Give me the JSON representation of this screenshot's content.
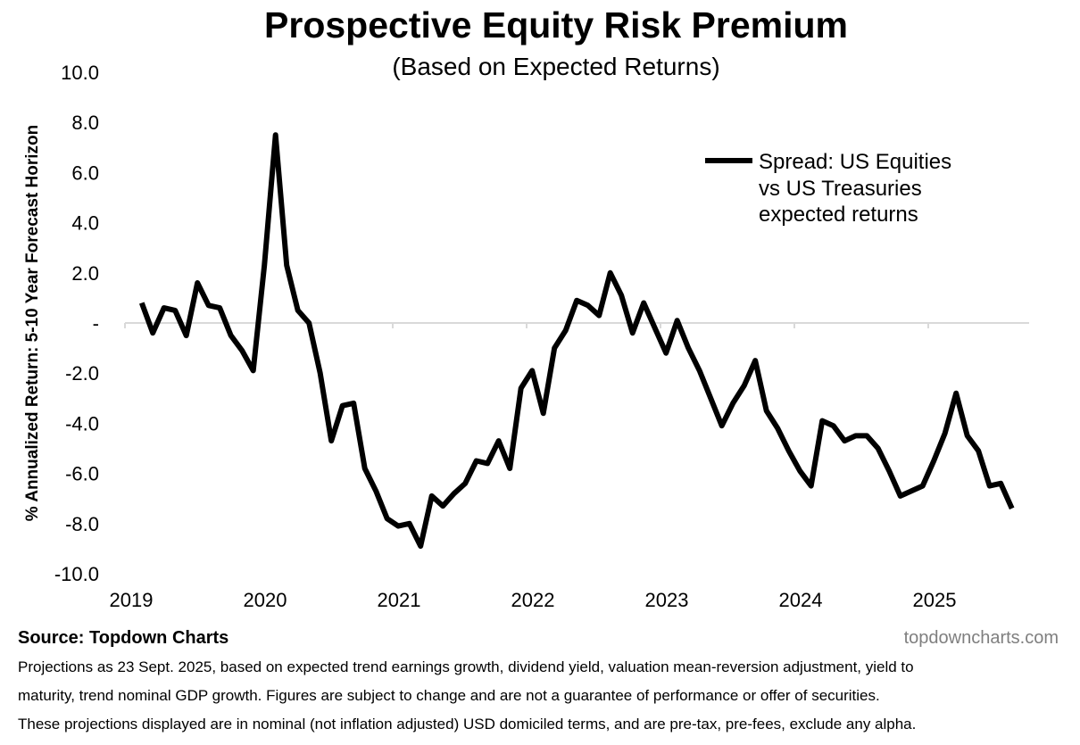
{
  "chart_data": {
    "type": "line",
    "title": "Prospective Equity Risk Premium",
    "subtitle": "(Based on Expected Returns)",
    "xlabel": "",
    "ylabel": "% Annualized Return: 5-10 Year Forecast Horizon",
    "ylim": [
      -10,
      10
    ],
    "xlim": [
      2019,
      2025.75
    ],
    "grid": false,
    "y_ticks": [
      "10.0",
      "8.0",
      "6.0",
      "4.0",
      "2.0",
      "-",
      "-2.0",
      "-4.0",
      "-6.0",
      "-8.0",
      "-10.0"
    ],
    "y_tick_values": [
      10,
      8,
      6,
      4,
      2,
      0,
      -2,
      -4,
      -6,
      -8,
      -10
    ],
    "x_ticks": [
      "2019",
      "2020",
      "2021",
      "2022",
      "2023",
      "2024",
      "2025"
    ],
    "x_tick_values": [
      2019,
      2020,
      2021,
      2022,
      2023,
      2024,
      2025
    ],
    "legend_position": "top-right",
    "series": [
      {
        "name": "Spread: US Equities vs US Treasuries expected returns",
        "legend_lines": [
          "Spread: US Equities",
          "vs US Treasuries",
          "expected returns"
        ],
        "color": "#000000",
        "x_start": 2019.125,
        "x_step": 0.08333,
        "values": [
          0.8,
          -0.4,
          0.6,
          0.5,
          -0.5,
          1.6,
          0.7,
          0.6,
          -0.5,
          -1.1,
          -1.9,
          2.3,
          7.5,
          2.3,
          0.5,
          0.0,
          -2.0,
          -4.7,
          -3.3,
          -3.2,
          -5.8,
          -6.7,
          -7.8,
          -8.1,
          -8.0,
          -8.9,
          -6.9,
          -7.3,
          -6.8,
          -6.4,
          -5.5,
          -5.6,
          -4.7,
          -5.8,
          -2.6,
          -1.9,
          -3.6,
          -1.0,
          -0.3,
          0.9,
          0.7,
          0.3,
          2.0,
          1.1,
          -0.4,
          0.8,
          -0.2,
          -1.2,
          0.1,
          -1.0,
          -1.9,
          -3.0,
          -4.1,
          -3.2,
          -2.5,
          -1.5,
          -3.5,
          -4.2,
          -5.1,
          -5.9,
          -6.5,
          -3.9,
          -4.1,
          -4.7,
          -4.5,
          -4.5,
          -5.0,
          -5.9,
          -6.9,
          -6.7,
          -6.5,
          -5.5,
          -4.4,
          -2.8,
          -4.5,
          -5.1,
          -6.5,
          -6.4,
          -7.4
        ]
      }
    ]
  },
  "footer": {
    "source": "Source: Topdown Charts",
    "website": "topdowncharts.com",
    "notes": [
      "Projections as 23 Sept. 2025, based on expected trend earnings growth, dividend yield, valuation mean-reversion adjustment, yield to",
      "maturity, trend nominal GDP growth.  Figures are subject to change and are not a guarantee of performance or offer of securities.",
      "These projections displayed are in nominal (not inflation adjusted) USD domiciled terms, and are pre-tax, pre-fees, exclude any alpha."
    ]
  }
}
